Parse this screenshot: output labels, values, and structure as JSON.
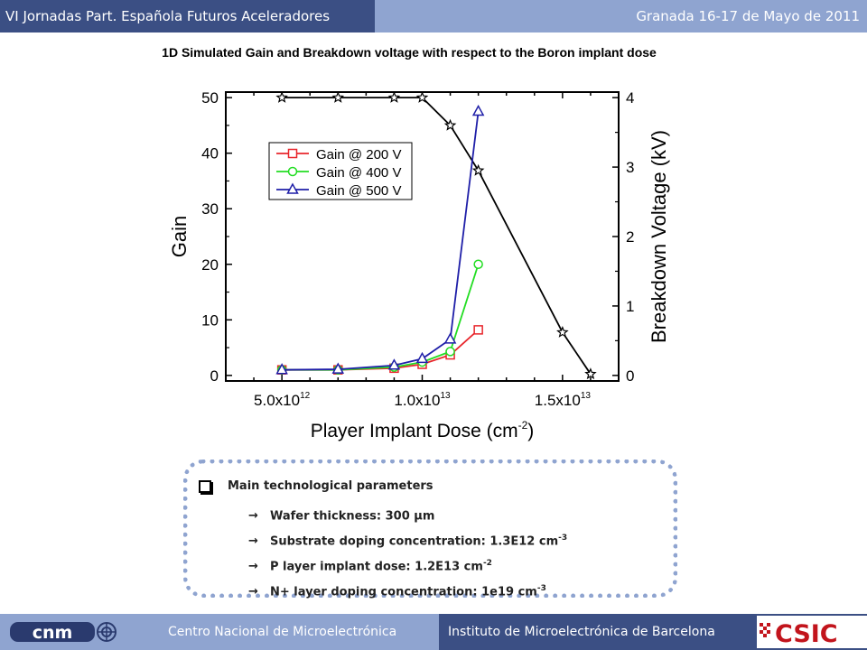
{
  "header": {
    "left": "VI Jornadas Part. Española Futuros Aceleradores",
    "right": "Granada 16-17 de Mayo de 2011"
  },
  "slide_title": "1D Simulated Gain and Breakdown voltage with respect to the Boron implant dose",
  "chart_data": {
    "type": "line",
    "xlabel": "Player Implant Dose (cm",
    "xlabel_sup": "-2",
    "xlabel_end": ")",
    "ylabel": "Gain",
    "y2label": "Breakdown Voltage (kV)",
    "xlim": [
      3000000000000.0,
      17000000000000.0
    ],
    "ylim": [
      -1,
      51
    ],
    "y2lim": [
      -0.08,
      4.08
    ],
    "xticks": [
      {
        "value": 5000000000000.0,
        "mantissa": "5.0x10",
        "exp": "12"
      },
      {
        "value": 10000000000000.0,
        "mantissa": "1.0x10",
        "exp": "13"
      },
      {
        "value": 15000000000000.0,
        "mantissa": "1.5x10",
        "exp": "13"
      }
    ],
    "yticks": [
      0,
      10,
      20,
      30,
      40,
      50
    ],
    "y2ticks": [
      0,
      1,
      2,
      3,
      4
    ],
    "legend_position": "upper-left",
    "series": [
      {
        "name": "Gain @ 200 V",
        "axis": "left",
        "color": "#e8262c",
        "marker": "square",
        "x": [
          5000000000000.0,
          7000000000000.0,
          9000000000000.0,
          10000000000000.0,
          11000000000000.0,
          12000000000000.0
        ],
        "y": [
          1.0,
          1.0,
          1.3,
          2.0,
          3.7,
          8.2
        ]
      },
      {
        "name": "Gain @ 400 V",
        "axis": "left",
        "color": "#22dd22",
        "marker": "circle",
        "x": [
          5000000000000.0,
          7000000000000.0,
          9000000000000.0,
          10000000000000.0,
          11000000000000.0,
          12000000000000.0
        ],
        "y": [
          1.0,
          1.0,
          1.5,
          2.4,
          4.3,
          20.0
        ]
      },
      {
        "name": "Gain @ 500 V",
        "axis": "left",
        "color": "#1f1fa8",
        "marker": "triangle",
        "x": [
          5000000000000.0,
          7000000000000.0,
          9000000000000.0,
          10000000000000.0,
          11000000000000.0,
          12000000000000.0
        ],
        "y": [
          1.0,
          1.1,
          1.8,
          3.0,
          6.5,
          47.5
        ]
      },
      {
        "axis": "right",
        "color": "#000000",
        "marker": "star",
        "x": [
          5000000000000.0,
          7000000000000.0,
          9000000000000.0,
          10000000000000.0,
          11000000000000.0,
          12000000000000.0,
          15000000000000.0,
          16000000000000.0
        ],
        "y": [
          4.0,
          4.0,
          4.0,
          4.0,
          3.6,
          2.95,
          0.62,
          0.02
        ]
      }
    ]
  },
  "params": {
    "heading": "Main technological parameters",
    "arrow": "→",
    "items": [
      {
        "label": "Wafer thickness: 300 µm",
        "sup": ""
      },
      {
        "label": "Substrate doping concentration: 1.3E12 cm",
        "sup": "-3"
      },
      {
        "label": "P layer implant dose: 1.2E13 cm",
        "sup": "-2"
      },
      {
        "label": "N+ layer doping concentration: 1e19 cm",
        "sup": "-3"
      }
    ]
  },
  "footer": {
    "left": "Centro Nacional de Microelectrónica",
    "right": "Instituto de Microelectrónica de Barcelona",
    "logo_left": "cnm",
    "logo_right": "CSIC"
  },
  "colors": {
    "header_dark": "#3b4f84",
    "header_light": "#8fa4d0"
  }
}
